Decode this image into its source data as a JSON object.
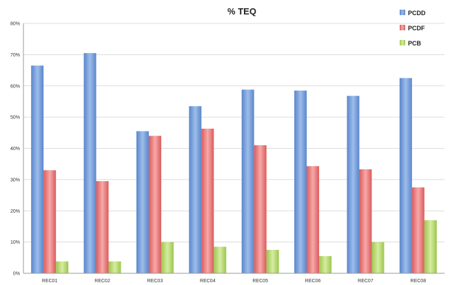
{
  "chart_data": {
    "type": "bar",
    "title": "% TEQ",
    "xlabel": "",
    "ylabel": "",
    "categories": [
      "REC01",
      "REC02",
      "REC03",
      "REC04",
      "REC05",
      "REC06",
      "REC07",
      "REC08"
    ],
    "series": [
      {
        "name": "PCDD",
        "color": "#6d9bdb",
        "values": [
          66.5,
          70.5,
          45.5,
          53.5,
          58.8,
          58.5,
          56.8,
          62.5
        ]
      },
      {
        "name": "PCDF",
        "color": "#e97b7b",
        "values": [
          33.0,
          29.5,
          44.0,
          46.3,
          41.0,
          34.3,
          33.3,
          27.5
        ]
      },
      {
        "name": "PCB",
        "color": "#b5d66d",
        "values": [
          3.8,
          3.8,
          10.0,
          8.5,
          7.5,
          5.5,
          10.0,
          17.0
        ]
      }
    ],
    "ylim": [
      0,
      80
    ],
    "yticks": [
      "0%",
      "10%",
      "20%",
      "30%",
      "40%",
      "50%",
      "60%",
      "70%",
      "80%"
    ],
    "grid": true,
    "legend_position": "top-right"
  }
}
